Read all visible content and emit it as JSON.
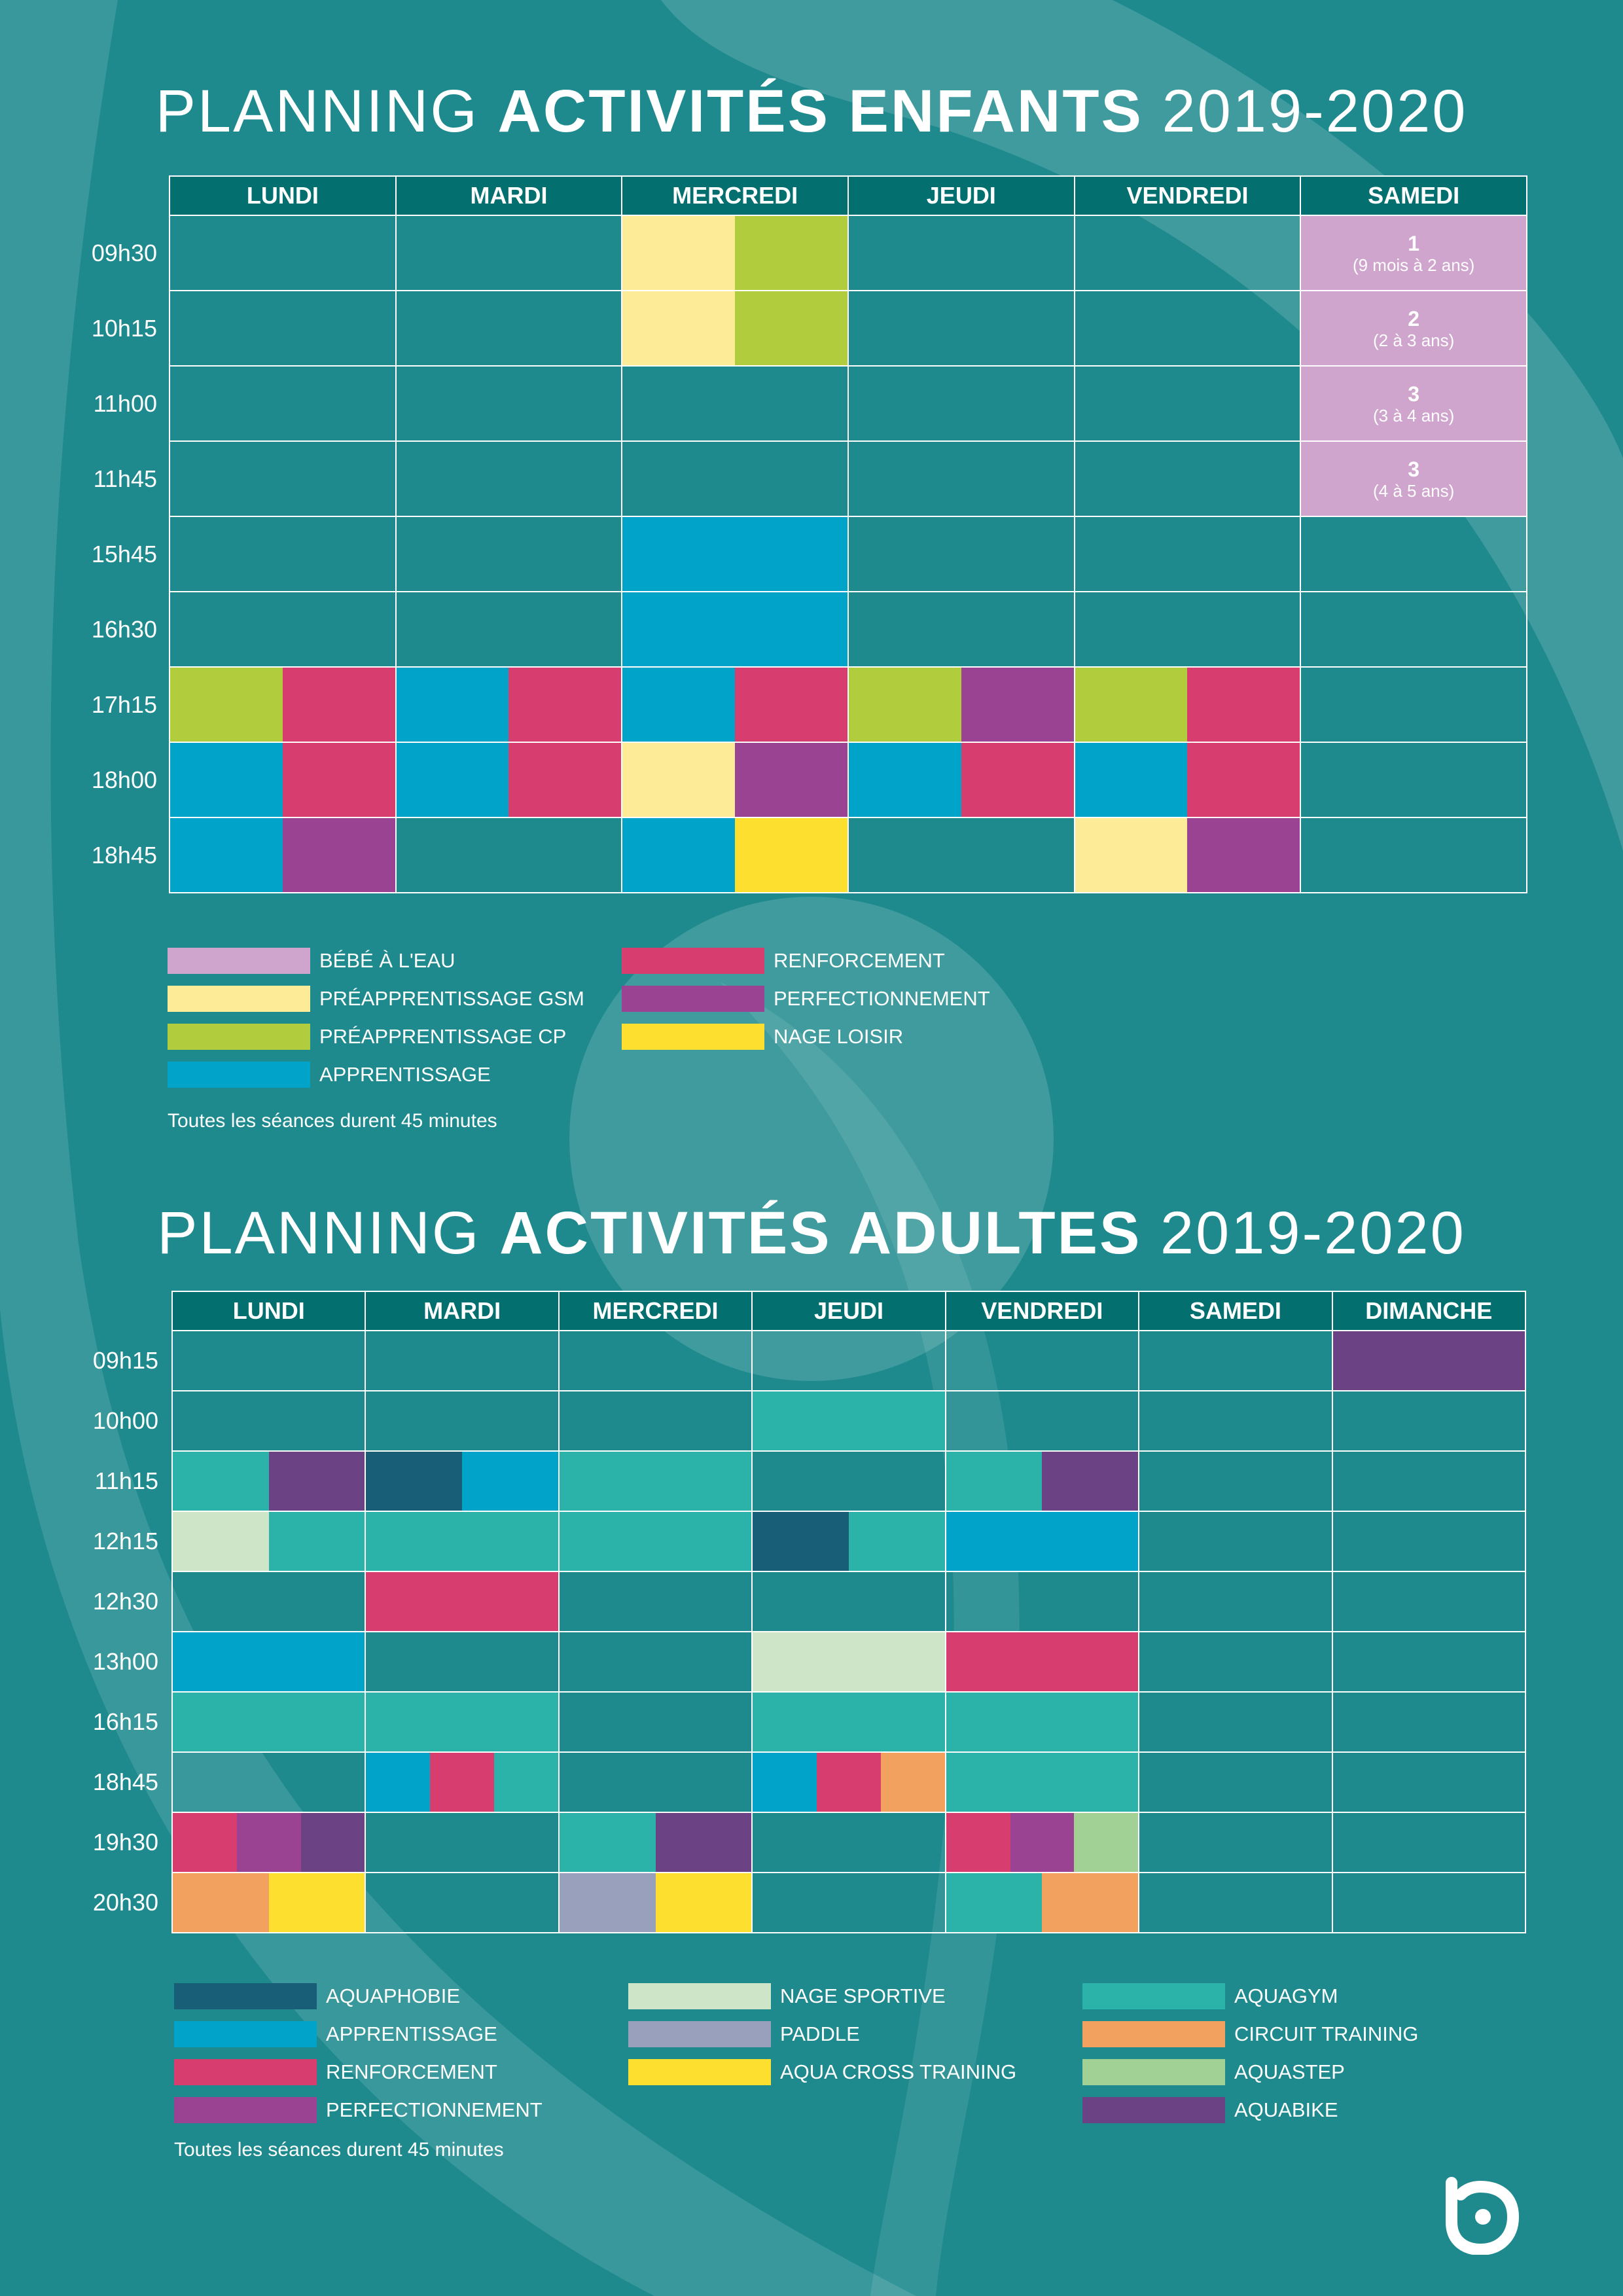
{
  "colors": {
    "background": "#1e8a8e",
    "header": "#03706f",
    "bebe": "#cfa4cd",
    "preapp_gsm": "#fdeb98",
    "preapp_cp": "#b1cd3e",
    "apprentissage": "#01a4c8",
    "renforcement": "#d73e6f",
    "perfectionnement": "#9b4393",
    "nage_loisir": "#fddf2f",
    "aquaphobie": "#175e76",
    "nage_sportive": "#cfe5c8",
    "paddle": "#99a0bb",
    "aqua_cross": "#fddf2f",
    "aquagym": "#2cb3a9",
    "circuit": "#f2a15e",
    "aquastep": "#a2d196",
    "aquabike": "#6b4385"
  },
  "kids": {
    "title_light": "PLANNING ",
    "title_bold": "ACTIVITÉS ENFANTS",
    "title_year": " 2019-2020",
    "days": [
      "LUNDI",
      "MARDI",
      "MERCREDI",
      "JEUDI",
      "VENDREDI",
      "SAMEDI"
    ],
    "times": [
      "09h30",
      "10h15",
      "11h00",
      "11h45",
      "15h45",
      "16h30",
      "17h15",
      "18h00",
      "18h45"
    ],
    "bebe_slots": [
      {
        "num": "1",
        "age": "(9 mois à 2 ans)"
      },
      {
        "num": "2",
        "age": "(2 à 3 ans)"
      },
      {
        "num": "3",
        "age": "(3 à 4 ans)"
      },
      {
        "num": "3",
        "age": "(4 à 5 ans)"
      }
    ],
    "grid": [
      [
        [],
        [],
        [
          "preapp_gsm",
          "preapp_cp"
        ],
        [],
        [],
        [
          "bebe"
        ]
      ],
      [
        [],
        [],
        [
          "preapp_gsm",
          "preapp_cp"
        ],
        [],
        [],
        [
          "bebe"
        ]
      ],
      [
        [],
        [],
        [],
        [],
        [],
        [
          "bebe"
        ]
      ],
      [
        [],
        [],
        [],
        [],
        [],
        [
          "bebe"
        ]
      ],
      [
        [],
        [],
        [
          "apprentissage"
        ],
        [],
        [],
        []
      ],
      [
        [],
        [],
        [
          "apprentissage"
        ],
        [],
        [],
        []
      ],
      [
        [
          "preapp_cp",
          "renforcement"
        ],
        [
          "apprentissage",
          "renforcement"
        ],
        [
          "apprentissage",
          "renforcement"
        ],
        [
          "preapp_cp",
          "perfectionnement"
        ],
        [
          "preapp_cp",
          "renforcement"
        ],
        []
      ],
      [
        [
          "apprentissage",
          "renforcement"
        ],
        [
          "apprentissage",
          "renforcement"
        ],
        [
          "preapp_gsm",
          "perfectionnement"
        ],
        [
          "apprentissage",
          "renforcement"
        ],
        [
          "apprentissage",
          "renforcement"
        ],
        []
      ],
      [
        [
          "apprentissage",
          "perfectionnement"
        ],
        [],
        [
          "apprentissage",
          "nage_loisir"
        ],
        [],
        [
          "preapp_gsm",
          "perfectionnement"
        ],
        []
      ]
    ],
    "legend": [
      {
        "color": "bebe",
        "label": "BÉBÉ À L'EAU"
      },
      {
        "color": "preapp_gsm",
        "label": "PRÉAPPRENTISSAGE GSM"
      },
      {
        "color": "preapp_cp",
        "label": "PRÉAPPRENTISSAGE CP"
      },
      {
        "color": "apprentissage",
        "label": "APPRENTISSAGE"
      },
      {
        "color": "renforcement",
        "label": "RENFORCEMENT"
      },
      {
        "color": "perfectionnement",
        "label": "PERFECTIONNEMENT"
      },
      {
        "color": "nage_loisir",
        "label": "NAGE LOISIR"
      }
    ],
    "note": "Toutes les séances durent 45 minutes"
  },
  "adults": {
    "title_light": "PLANNING ",
    "title_bold": "ACTIVITÉS ADULTES",
    "title_year": " 2019-2020",
    "days": [
      "LUNDI",
      "MARDI",
      "MERCREDI",
      "JEUDI",
      "VENDREDI",
      "SAMEDI",
      "DIMANCHE"
    ],
    "times": [
      "09h15",
      "10h00",
      "11h15",
      "12h15",
      "12h30",
      "13h00",
      "16h15",
      "18h45",
      "19h30",
      "20h30"
    ],
    "grid": [
      [
        [],
        [],
        [],
        [],
        [],
        [],
        [
          "aquabike"
        ]
      ],
      [
        [],
        [],
        [],
        [
          "aquagym"
        ],
        [],
        [],
        []
      ],
      [
        [
          "aquagym",
          "aquabike"
        ],
        [
          "aquaphobie",
          "apprentissage"
        ],
        [
          "aquagym"
        ],
        [],
        [
          "aquagym",
          "aquabike"
        ],
        [],
        []
      ],
      [
        [
          "nage_sportive",
          "aquagym"
        ],
        [
          "aquagym"
        ],
        [
          "aquagym"
        ],
        [
          "aquaphobie",
          "aquagym"
        ],
        [
          "apprentissage"
        ],
        [],
        []
      ],
      [
        [],
        [
          "renforcement"
        ],
        [],
        [],
        [],
        [],
        []
      ],
      [
        [
          "apprentissage"
        ],
        [],
        [],
        [
          "nage_sportive"
        ],
        [
          "renforcement"
        ],
        [],
        []
      ],
      [
        [
          "aquagym"
        ],
        [
          "aquagym"
        ],
        [],
        [
          "aquagym"
        ],
        [
          "aquagym"
        ],
        [],
        []
      ],
      [
        [],
        [
          "apprentissage",
          "renforcement",
          "aquagym"
        ],
        [],
        [
          "apprentissage",
          "renforcement",
          "circuit"
        ],
        [
          "aquagym"
        ],
        [],
        []
      ],
      [
        [
          "renforcement",
          "perfectionnement",
          "aquabike"
        ],
        [],
        [
          "aquagym",
          "aquabike"
        ],
        [],
        [
          "renforcement",
          "perfectionnement",
          "aquastep"
        ],
        [],
        []
      ],
      [
        [
          "circuit",
          "aqua_cross"
        ],
        [],
        [
          "paddle",
          "aqua_cross"
        ],
        [],
        [
          "aquagym",
          "circuit"
        ],
        [],
        []
      ]
    ],
    "legend": [
      {
        "color": "aquaphobie",
        "label": "AQUAPHOBIE"
      },
      {
        "color": "apprentissage",
        "label": "APPRENTISSAGE"
      },
      {
        "color": "renforcement",
        "label": "RENFORCEMENT"
      },
      {
        "color": "perfectionnement",
        "label": "PERFECTIONNEMENT"
      },
      {
        "color": "nage_sportive",
        "label": "NAGE SPORTIVE"
      },
      {
        "color": "paddle",
        "label": "PADDLE"
      },
      {
        "color": "aqua_cross",
        "label": "AQUA CROSS TRAINING"
      },
      {
        "color": "aquagym",
        "label": "AQUAGYM"
      },
      {
        "color": "circuit",
        "label": "CIRCUIT TRAINING"
      },
      {
        "color": "aquastep",
        "label": "AQUASTEP"
      },
      {
        "color": "aquabike",
        "label": "AQUABIKE"
      }
    ],
    "note": "Toutes les séances durent 45 minutes"
  },
  "logo_icon": "brand-logo-icon"
}
